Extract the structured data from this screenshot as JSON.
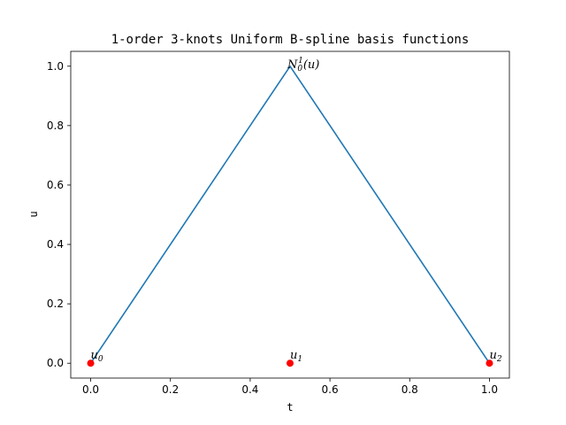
{
  "chart_data": {
    "type": "line",
    "title": "1-order 3-knots Uniform B-spline basis functions",
    "xlabel": "t",
    "ylabel": "u",
    "xlim": [
      -0.05,
      1.05
    ],
    "ylim": [
      -0.05,
      1.05
    ],
    "xticks": [
      0.0,
      0.2,
      0.4,
      0.6,
      0.8,
      1.0
    ],
    "xtick_labels": [
      "0.0",
      "0.2",
      "0.4",
      "0.6",
      "0.8",
      "1.0"
    ],
    "yticks": [
      0.0,
      0.2,
      0.4,
      0.6,
      0.8,
      1.0
    ],
    "ytick_labels": [
      "0.0",
      "0.2",
      "0.4",
      "0.6",
      "0.8",
      "1.0"
    ],
    "grid": false,
    "series": [
      {
        "label": {
          "base": "N",
          "sub": "0",
          "sup": "1",
          "arg": "(u)"
        },
        "color": "#1f77b4",
        "x": [
          0.0,
          0.5,
          1.0
        ],
        "y": [
          0.0,
          1.0,
          0.0
        ]
      }
    ],
    "knots": {
      "color": "#ff0000",
      "points": [
        {
          "x": 0.0,
          "y": 0.0,
          "label": {
            "base": "u",
            "sub": "0"
          }
        },
        {
          "x": 0.5,
          "y": 0.0,
          "label": {
            "base": "u",
            "sub": "1"
          }
        },
        {
          "x": 1.0,
          "y": 0.0,
          "label": {
            "base": "u",
            "sub": "2"
          }
        }
      ]
    }
  }
}
